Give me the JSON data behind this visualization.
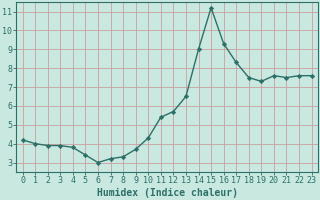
{
  "x": [
    0,
    1,
    2,
    3,
    4,
    5,
    6,
    7,
    8,
    9,
    10,
    11,
    12,
    13,
    14,
    15,
    16,
    17,
    18,
    19,
    20,
    21,
    22,
    23
  ],
  "y": [
    4.2,
    4.0,
    3.9,
    3.9,
    3.8,
    3.4,
    3.0,
    3.2,
    3.3,
    3.7,
    4.3,
    5.4,
    5.7,
    6.5,
    9.0,
    11.2,
    9.3,
    8.3,
    7.5,
    7.3,
    7.6,
    7.5,
    7.6,
    7.6
  ],
  "line_color": "#2d7068",
  "marker": "D",
  "marker_size": 2.2,
  "bg_color": "#c8e8e0",
  "grid_color": "#c8a0a0",
  "axis_color": "#2d7068",
  "spine_color": "#2d7068",
  "xlabel": "Humidex (Indice chaleur)",
  "xlim": [
    -0.5,
    23.5
  ],
  "ylim": [
    2.5,
    11.5
  ],
  "yticks": [
    3,
    4,
    5,
    6,
    7,
    8,
    9,
    10,
    11
  ],
  "xtick_labels": [
    "0",
    "1",
    "2",
    "3",
    "4",
    "5",
    "6",
    "7",
    "8",
    "9",
    "10",
    "11",
    "12",
    "13",
    "14",
    "15",
    "16",
    "17",
    "18",
    "19",
    "20",
    "21",
    "22",
    "23"
  ],
  "tick_fontsize": 6,
  "xlabel_fontsize": 7,
  "linewidth": 1.0
}
